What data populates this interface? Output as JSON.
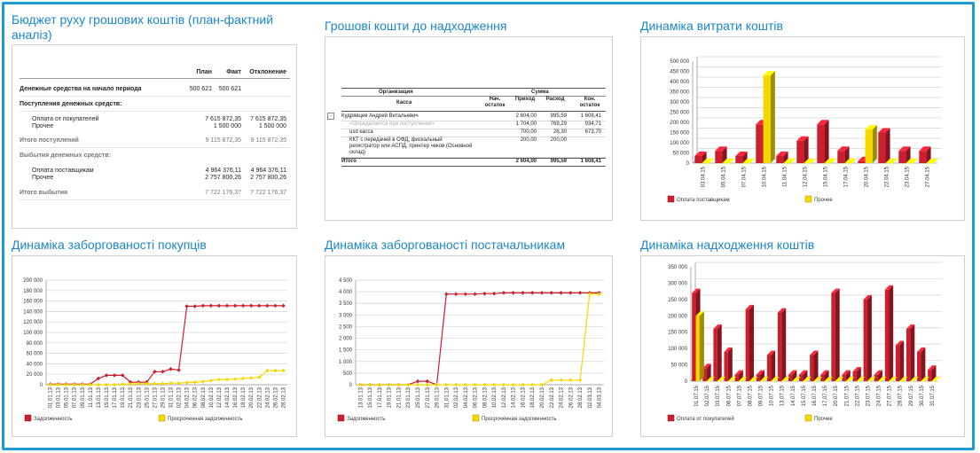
{
  "panels": {
    "budget": {
      "title": "Бюджет руху грошових коштів (план-фактний аналіз)",
      "title_line1": "Бюджет руху грошових коштів (план-фактний",
      "title_line2": "аналіз)",
      "headers": [
        "План",
        "Факт",
        "Отклонение"
      ],
      "rows": [
        {
          "label": "Денежные средства на начало периода",
          "plan": "500 621",
          "fact": "500 621",
          "dev": "",
          "style": "bold"
        },
        {
          "label": "Поступления денежных средств:",
          "plan": "",
          "fact": "",
          "dev": "",
          "style": "bold"
        },
        {
          "label": "Оплата от покупателей",
          "plan": "",
          "fact": "7 615 872,35",
          "dev": "7 615 872,35",
          "style": "indent"
        },
        {
          "label": "Прочее",
          "plan": "",
          "fact": "1 500 000",
          "dev": "1 500 000",
          "style": "indent"
        },
        {
          "label": "Итого поступлений",
          "plan": "",
          "fact": "9 115 872,35",
          "dev": "9 115 872,35",
          "style": "total"
        },
        {
          "label": "Выбытия денежных средств:",
          "plan": "",
          "fact": "",
          "dev": "",
          "style": "section"
        },
        {
          "label": "Оплата поставщикам",
          "plan": "",
          "fact": "4 964 376,11",
          "dev": "4 964 376,11",
          "style": "indent"
        },
        {
          "label": "Прочее",
          "plan": "",
          "fact": "2 757 800,26",
          "dev": "2 757 800,26",
          "style": "indent"
        },
        {
          "label": "Итого выбытия",
          "plan": "",
          "fact": "7 722 176,37",
          "dev": "7 722 176,37",
          "style": "total"
        }
      ]
    },
    "receivable_cash": {
      "title": "Грошові кошти до надходження",
      "header_org": "Организация",
      "header_sum": "Сумма",
      "header_kassa": "Касса",
      "header_cols": [
        "Нач. остаток",
        "Приход",
        "Расход",
        "Кон. остаток"
      ],
      "rows": [
        {
          "label": "Кудрявцев Андрей Витальевич",
          "v": [
            "2 604,00",
            "995,59",
            "1 608,41"
          ],
          "style": "group"
        },
        {
          "label": "<Определяется при поступлении>",
          "v": [
            "1 704,00",
            "769,29",
            "934,71"
          ],
          "style": "muted"
        },
        {
          "label": "usd касса",
          "v": [
            "700,00",
            "26,30",
            "673,70"
          ],
          "style": "plain"
        },
        {
          "label": "ККТ с передачей в ОФД, фискальный регистратор или АСПД, принтер чеков (Основной склад)",
          "v": [
            "200,00",
            "200,00",
            ""
          ],
          "style": "plain"
        },
        {
          "label": "Итого",
          "v": [
            "2 604,00",
            "995,59",
            "1 608,41"
          ],
          "style": "total"
        }
      ]
    },
    "spending": {
      "title": "Динаміка витрати коштів"
    },
    "buyers_debt": {
      "title": "Динаміка заборгованості покупців"
    },
    "suppliers_debt": {
      "title": "Динаміка заборгованості постачальникам"
    },
    "inflow": {
      "title": "Динаміка надходження коштів"
    }
  },
  "chart_data": [
    {
      "id": "spending",
      "type": "bar",
      "title": "Динаміка витрати коштів",
      "categories": [
        "03.04.15",
        "05.04.15",
        "07.04.15",
        "10.04.15",
        "11.04.15",
        "12.04.15",
        "15.04.15",
        "17.04.15",
        "20.04.15",
        "22.04.15",
        "23.04.15",
        "27.04.15"
      ],
      "series": [
        {
          "name": "Оплата поставщикам",
          "color": "#cc1f2e",
          "values": [
            35000,
            60000,
            35000,
            190000,
            35000,
            110000,
            190000,
            60000,
            10000,
            150000,
            60000,
            60000
          ]
        },
        {
          "name": "Прочее",
          "color": "#f5d800",
          "values": [
            0,
            0,
            0,
            430000,
            0,
            0,
            0,
            0,
            165000,
            0,
            0,
            0
          ]
        }
      ],
      "ylim": [
        0,
        500000
      ],
      "yticks": [
        "0",
        "50 000",
        "100 000",
        "150 000",
        "200 000",
        "250 000",
        "300 000",
        "350 000",
        "400 000",
        "450 000",
        "500 000"
      ],
      "legend": "bottom"
    },
    {
      "id": "buyers_debt",
      "type": "line",
      "title": "Динаміка заборгованості покупців",
      "categories": [
        "01.01.13",
        "03.01.13",
        "05.01.13",
        "07.01.13",
        "09.01.13",
        "11.01.13",
        "13.01.13",
        "15.01.13",
        "17.01.13",
        "19.01.13",
        "21.01.13",
        "23.01.13",
        "25.01.13",
        "27.01.13",
        "29.01.13",
        "31.01.13",
        "02.02.13",
        "04.02.13",
        "06.02.13",
        "08.02.13",
        "10.02.13",
        "12.02.13",
        "14.02.13",
        "16.02.13",
        "18.02.13",
        "20.02.13",
        "22.02.13",
        "24.02.13",
        "26.02.13",
        "28.02.13"
      ],
      "series": [
        {
          "name": "Задолженность",
          "color": "#cc1f2e",
          "values": [
            1000,
            1000,
            1000,
            1000,
            1000,
            1000,
            12000,
            18000,
            18000,
            18000,
            5000,
            5000,
            5000,
            25000,
            25000,
            30000,
            28000,
            150000,
            150000,
            151000,
            151000,
            151000,
            151000,
            151000,
            151000,
            151000,
            151000,
            151000,
            151000,
            151000
          ]
        },
        {
          "name": "Просроченная задолженность",
          "color": "#f5d800",
          "values": [
            0,
            0,
            0,
            0,
            0,
            0,
            0,
            0,
            0,
            1000,
            1000,
            2000,
            2000,
            2000,
            2000,
            3000,
            3000,
            4000,
            5000,
            6000,
            8000,
            10000,
            10000,
            11000,
            12000,
            13000,
            14000,
            27000,
            27000,
            27000
          ]
        }
      ],
      "ylim": [
        0,
        200000
      ],
      "yticks": [
        "0",
        "20 000",
        "40 000",
        "60 000",
        "80 000",
        "100 000",
        "120 000",
        "140 000",
        "160 000",
        "180 000",
        "200 000"
      ],
      "legend": "bottom"
    },
    {
      "id": "suppliers_debt",
      "type": "line",
      "title": "Динаміка заборгованості постачальникам",
      "categories": [
        "13.01.13",
        "15.01.13",
        "17.01.13",
        "19.01.13",
        "21.01.13",
        "23.01.13",
        "25.01.13",
        "27.01.13",
        "29.01.13",
        "31.01.13",
        "02.02.13",
        "04.02.13",
        "06.02.13",
        "08.02.13",
        "10.02.13",
        "12.02.13",
        "14.02.13",
        "16.02.13",
        "18.02.13",
        "20.02.13",
        "22.02.13",
        "24.02.13",
        "26.02.13",
        "28.02.13",
        "02.03.13",
        "04.03.13"
      ],
      "series": [
        {
          "name": "Задолженность",
          "color": "#cc1f2e",
          "values": [
            0,
            0,
            0,
            0,
            0,
            0,
            150,
            150,
            0,
            3900,
            3900,
            3900,
            3900,
            3920,
            3920,
            3950,
            3950,
            3950,
            3950,
            3950,
            3950,
            3950,
            3950,
            3950,
            3950,
            3950
          ]
        },
        {
          "name": "Просроченная задолженность",
          "color": "#f5d800",
          "values": [
            0,
            0,
            0,
            0,
            0,
            0,
            0,
            0,
            0,
            0,
            0,
            0,
            0,
            0,
            0,
            0,
            0,
            0,
            0,
            0,
            200,
            200,
            200,
            200,
            3900,
            3900
          ]
        }
      ],
      "ylim": [
        0,
        4500
      ],
      "yticks": [
        "0",
        "500",
        "1 000",
        "1 500",
        "2 000",
        "2 500",
        "3 000",
        "3 500",
        "4 000",
        "4 500"
      ],
      "legend": "bottom"
    },
    {
      "id": "inflow",
      "type": "bar",
      "title": "Динаміка надходження коштів",
      "categories": [
        "01.07.15",
        "02.07.15",
        "03.07.15",
        "06.07.15",
        "07.07.15",
        "08.07.15",
        "09.07.15",
        "10.07.15",
        "13.07.15",
        "14.07.15",
        "15.07.15",
        "16.07.15",
        "17.07.15",
        "20.07.15",
        "21.07.15",
        "22.07.15",
        "23.07.15",
        "24.07.15",
        "27.07.15",
        "28.07.15",
        "29.07.15",
        "30.07.15",
        "31.07.15"
      ],
      "series": [
        {
          "name": "Оплата от покупателей",
          "color": "#cc1f2e",
          "values": [
            270000,
            40000,
            160000,
            90000,
            20000,
            220000,
            20000,
            80000,
            210000,
            20000,
            20000,
            80000,
            20000,
            270000,
            20000,
            30000,
            250000,
            20000,
            280000,
            110000,
            160000,
            90000,
            35000
          ]
        },
        {
          "name": "Прочее",
          "color": "#f5d800",
          "values": [
            200000,
            0,
            0,
            0,
            0,
            0,
            0,
            0,
            0,
            0,
            0,
            0,
            0,
            0,
            0,
            0,
            0,
            0,
            0,
            0,
            0,
            0,
            0
          ]
        }
      ],
      "ylim": [
        0,
        350000
      ],
      "yticks": [
        "0",
        "50 000",
        "100 000",
        "150 000",
        "200 000",
        "250 000",
        "300 000",
        "350 000"
      ],
      "legend": "bottom"
    }
  ]
}
